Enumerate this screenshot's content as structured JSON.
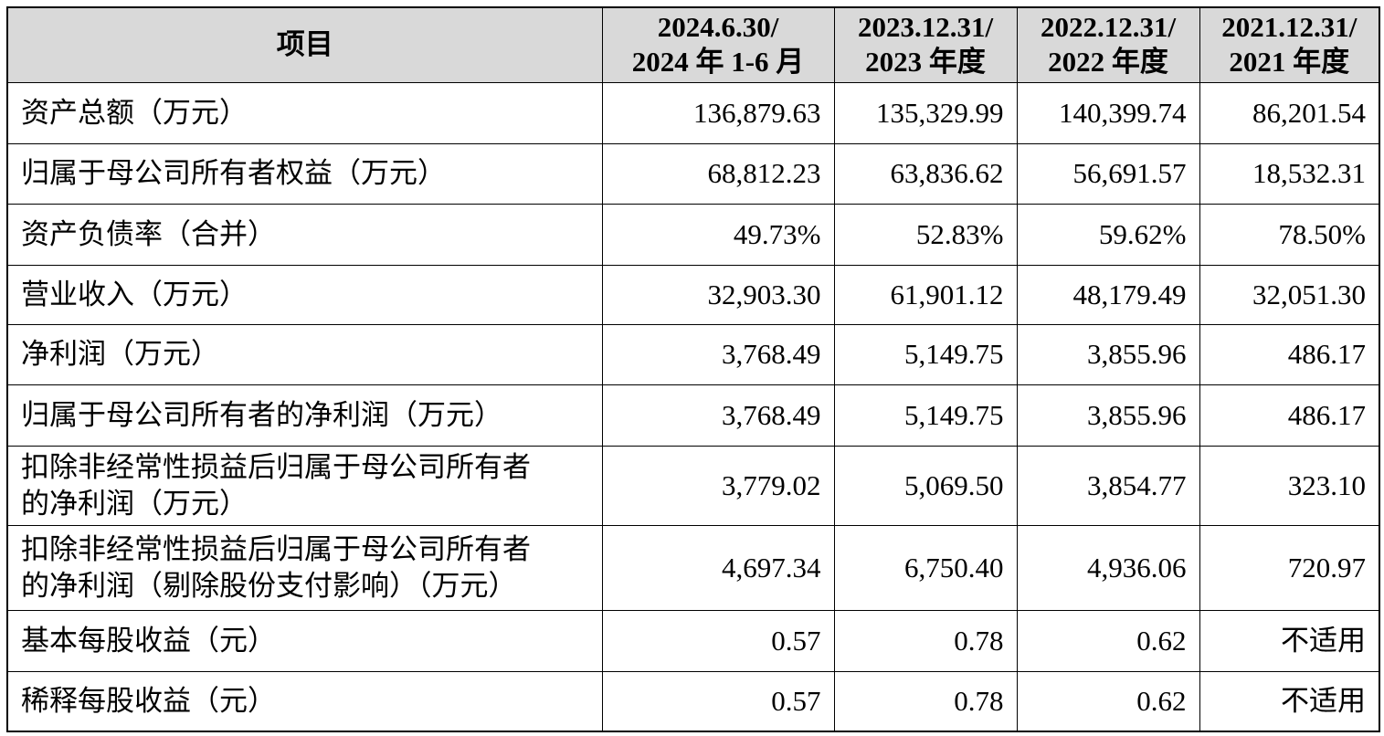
{
  "table": {
    "header": [
      [
        "项目"
      ],
      [
        "2024.6.30/",
        "2024 年 1-6 月"
      ],
      [
        "2023.12.31/",
        "2023 年度"
      ],
      [
        "2022.12.31/",
        "2022 年度"
      ],
      [
        "2021.12.31/",
        "2021 年度"
      ]
    ],
    "rows": [
      [
        [
          "资产总额（万元）"
        ],
        "136,879.63",
        "135,329.99",
        "140,399.74",
        "86,201.54"
      ],
      [
        [
          "归属于母公司所有者权益（万元）"
        ],
        "68,812.23",
        "63,836.62",
        "56,691.57",
        "18,532.31"
      ],
      [
        [
          "资产负债率（合并）"
        ],
        "49.73%",
        "52.83%",
        "59.62%",
        "78.50%"
      ],
      [
        [
          "营业收入（万元）"
        ],
        "32,903.30",
        "61,901.12",
        "48,179.49",
        "32,051.30"
      ],
      [
        [
          "净利润（万元）"
        ],
        "3,768.49",
        "5,149.75",
        "3,855.96",
        "486.17"
      ],
      [
        [
          "归属于母公司所有者的净利润（万元）"
        ],
        "3,768.49",
        "5,149.75",
        "3,855.96",
        "486.17"
      ],
      [
        [
          "扣除非经常性损益后归属于母公司所有者",
          "的净利润（万元）"
        ],
        "3,779.02",
        "5,069.50",
        "3,854.77",
        "323.10"
      ],
      [
        [
          "扣除非经常性损益后归属于母公司所有者",
          "的净利润（剔除股份支付影响）（万元）"
        ],
        "4,697.34",
        "6,750.40",
        "4,936.06",
        "720.97"
      ],
      [
        [
          "基本每股收益（元）"
        ],
        "0.57",
        "0.78",
        "0.62",
        "不适用"
      ],
      [
        [
          "稀释每股收益（元）"
        ],
        "0.57",
        "0.78",
        "0.62",
        "不适用"
      ]
    ]
  }
}
